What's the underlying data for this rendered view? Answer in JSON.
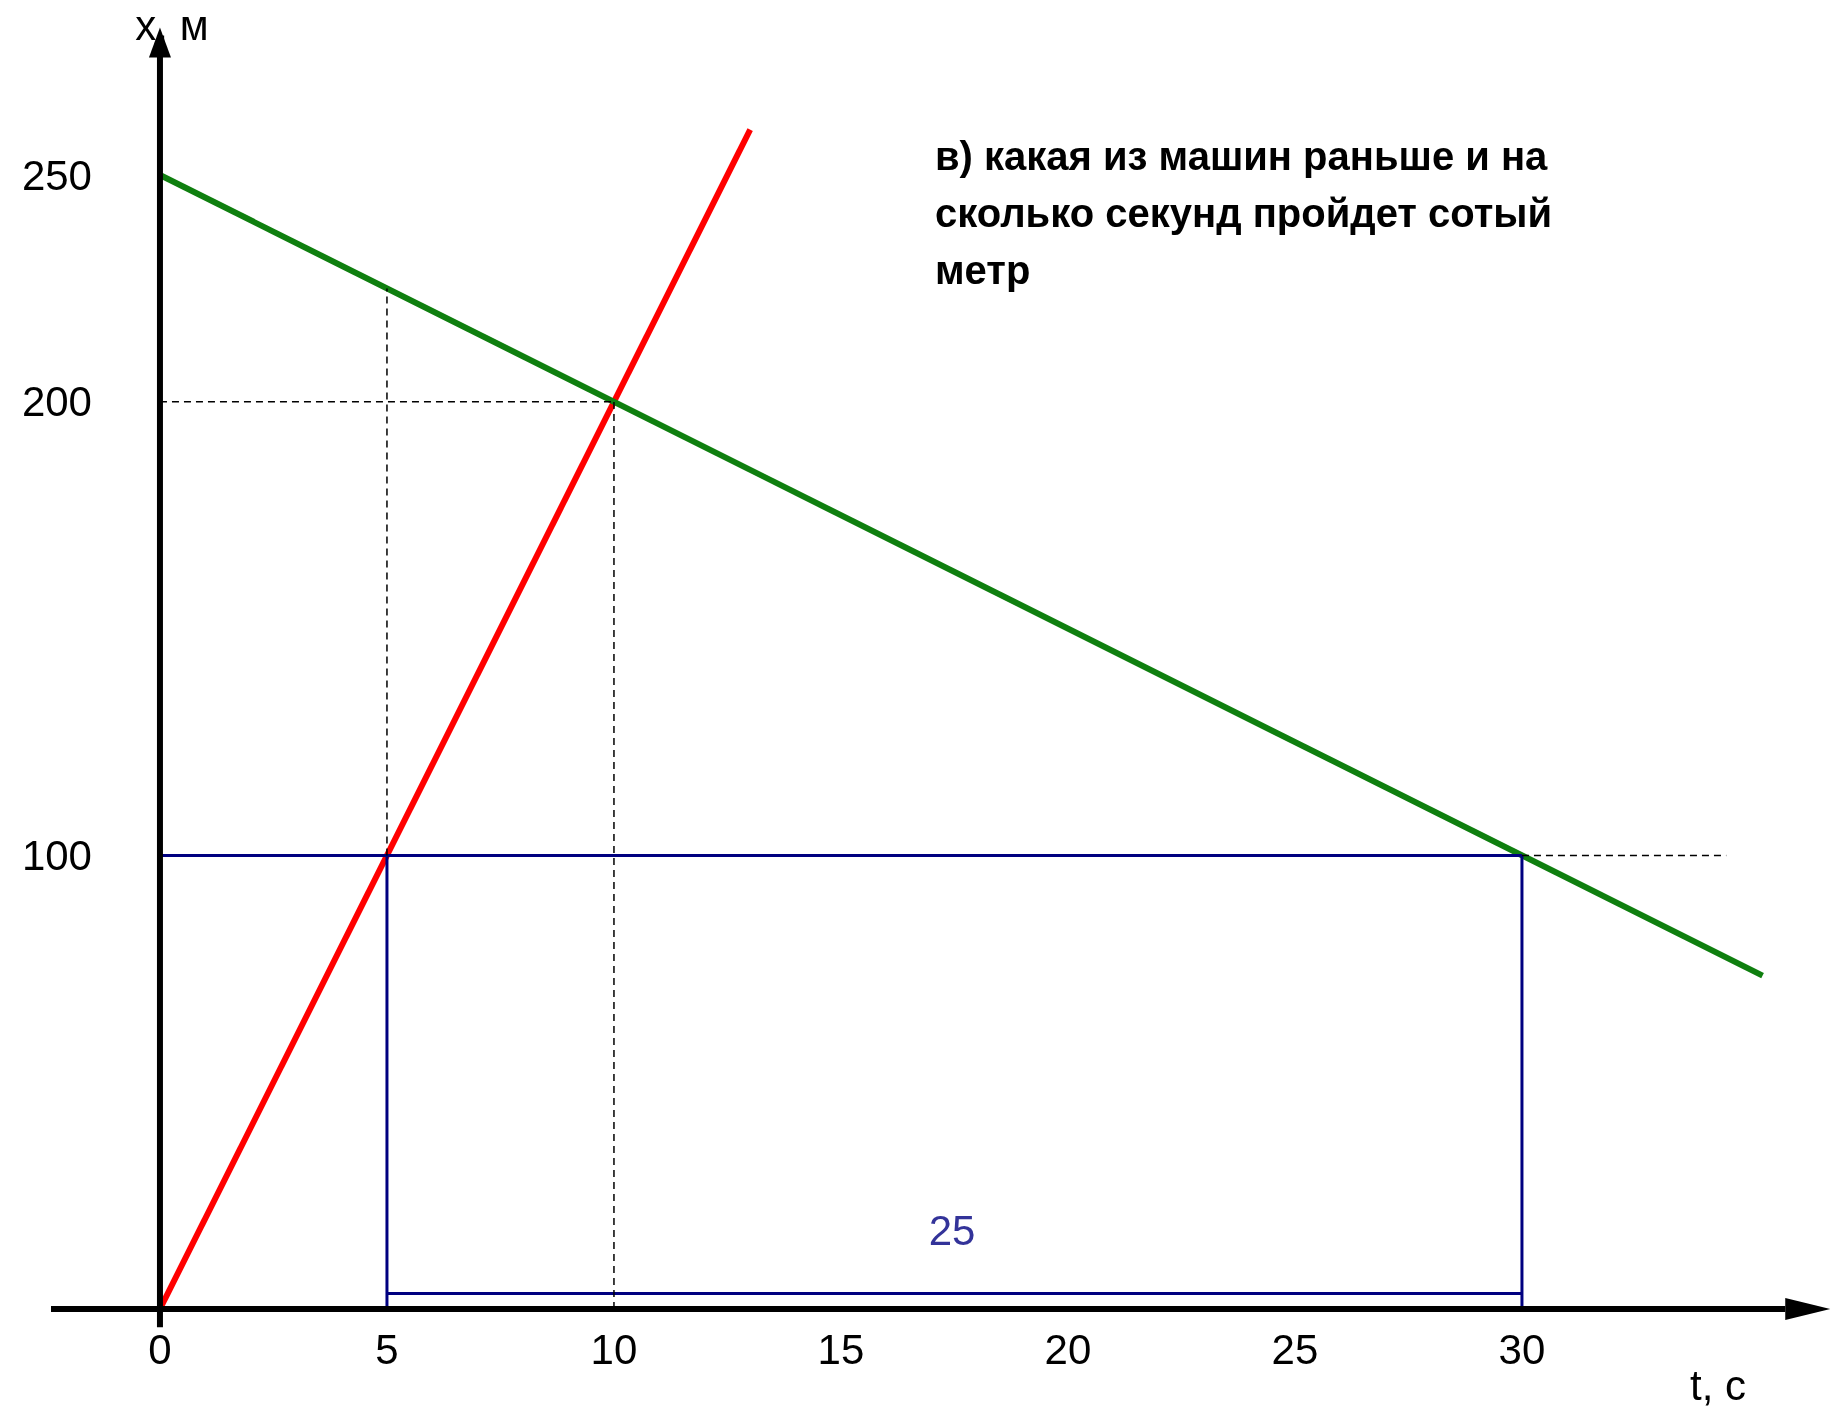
{
  "chart_data": {
    "type": "line",
    "title": "в) какая из машин раньше и на сколько секунд пройдет сотый метр",
    "xlabel": "t, с",
    "ylabel": "x, м",
    "xlim": [
      -2.4,
      35.8
    ],
    "ylim": [
      -4,
      277
    ],
    "xticks": [
      0,
      5,
      10,
      15,
      20,
      25,
      30
    ],
    "yticks": [
      100,
      200,
      250
    ],
    "grid": false,
    "annotations": [
      "25"
    ],
    "series": [
      {
        "x": [
          0,
          13
        ],
        "values": [
          0,
          260
        ],
        "color": "#ff0000",
        "line_style": "solid"
      },
      {
        "x": [
          0,
          35.3
        ],
        "values": [
          250,
          73.5
        ],
        "color": "#0f7f0f",
        "line_style": "solid"
      },
      {
        "x": [
          0,
          30
        ],
        "values": [
          100,
          100
        ],
        "color": "#000080",
        "line_style": "solid"
      },
      {
        "x": [
          5,
          5
        ],
        "values": [
          0,
          100
        ],
        "color": "#000080",
        "line_style": "solid"
      },
      {
        "x": [
          30,
          30
        ],
        "values": [
          0,
          100
        ],
        "color": "#000080",
        "line_style": "solid"
      },
      {
        "x": [
          5,
          30
        ],
        "values": [
          3.4,
          3.4
        ],
        "color": "#000080",
        "line_style": "solid"
      },
      {
        "x": [
          5,
          5
        ],
        "values": [
          100,
          225
        ],
        "color": "#000000",
        "line_style": "dashed"
      },
      {
        "x": [
          10,
          10
        ],
        "values": [
          0,
          200
        ],
        "color": "#000000",
        "line_style": "dashed"
      },
      {
        "x": [
          0,
          10
        ],
        "values": [
          200,
          200
        ],
        "color": "#000000",
        "line_style": "dashed"
      },
      {
        "x": [
          30,
          34.5
        ],
        "values": [
          100,
          100
        ],
        "color": "#000000",
        "line_style": "dashed"
      }
    ]
  }
}
